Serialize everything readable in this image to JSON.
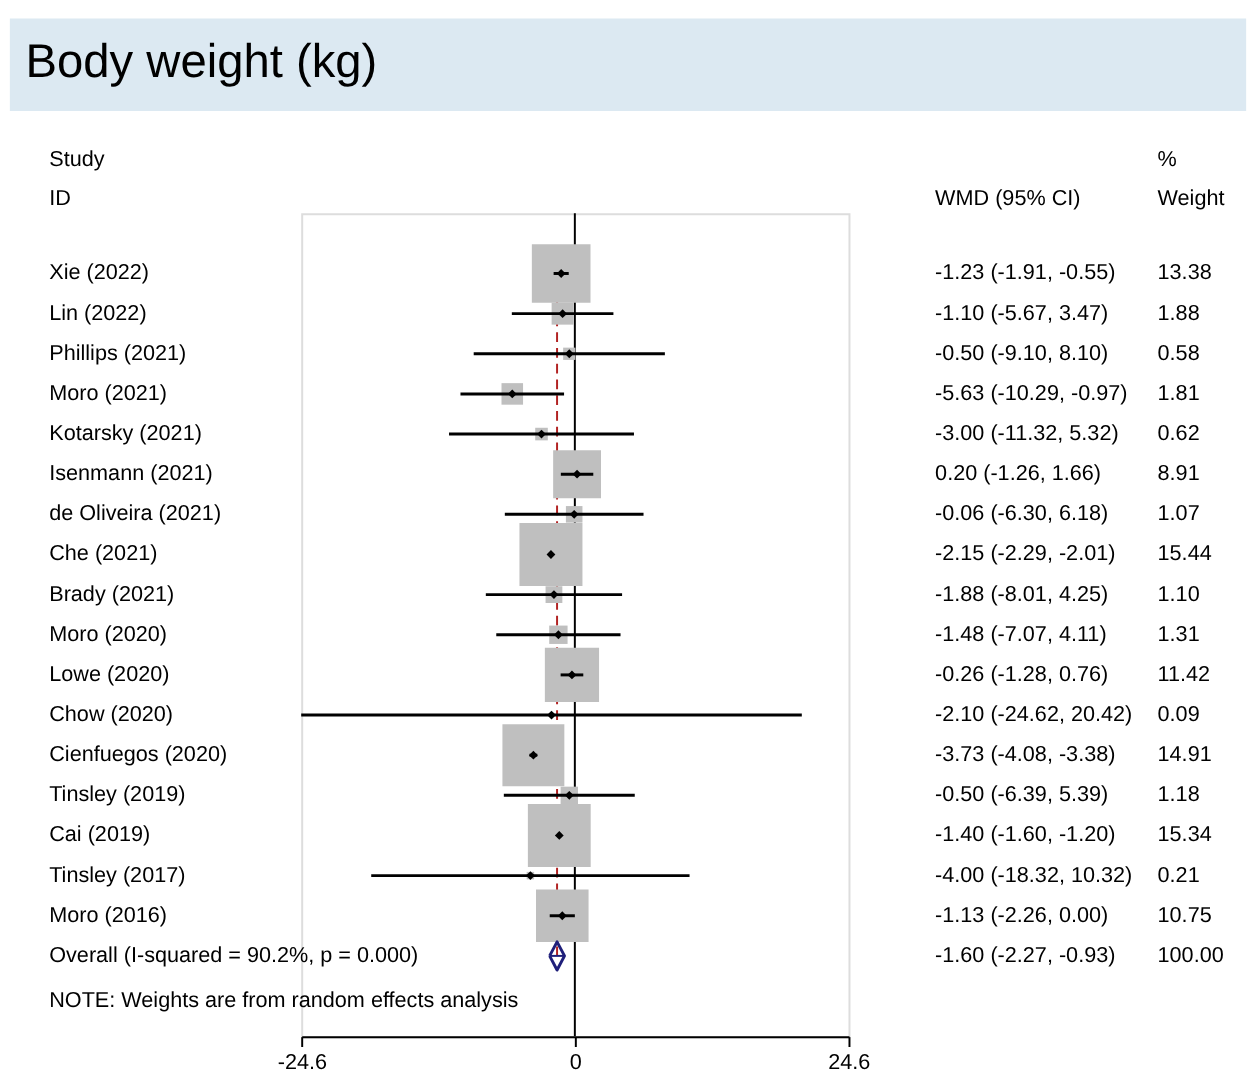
{
  "chart_data": {
    "type": "bubble",
    "orientation": "horizontal",
    "title": "Body weight (kg)",
    "ylabel": "Study\nID",
    "categories": [
      "Xie (2022)",
      "Lin (2022)",
      "Phillips (2021)",
      "Moro (2021)",
      "Kotarsky (2021)",
      "Isenmann (2021)",
      "de Oliveira (2021)",
      "Che (2021)",
      "Brady (2021)",
      "Moro (2020)",
      "Lowe (2020)",
      "Chow (2020)",
      "Cienfuegos (2020)",
      "Tinsley (2019)",
      "Cai  (2019)",
      "Tinsley (2017)",
      "Moro (2016)",
      "Overall  (I-squared = 90.2%, p = 0.000)"
    ],
    "series": [
      {
        "marker": "square",
        "color": "#bfbfbf",
        "values": [
          -1.23,
          -1.1,
          -0.5,
          -5.63,
          -3.0,
          0.2,
          -0.06,
          -2.15,
          -1.88,
          -1.48,
          -0.26,
          -2.1,
          -3.73,
          -0.5,
          -1.4,
          -4.0,
          -1.13,
          null
        ],
        "errors": [
          [
            -1.91,
            -0.55
          ],
          [
            -5.67,
            3.47
          ],
          [
            -9.1,
            8.1
          ],
          [
            -10.29,
            -0.97
          ],
          [
            -11.32,
            5.32
          ],
          [
            -1.26,
            1.66
          ],
          [
            -6.3,
            6.18
          ],
          [
            -2.29,
            -2.01
          ],
          [
            -8.01,
            4.25
          ],
          [
            -7.07,
            4.11
          ],
          [
            -1.28,
            0.76
          ],
          [
            -24.62,
            20.42
          ],
          [
            -4.08,
            -3.38
          ],
          [
            -6.39,
            5.39
          ],
          [
            -1.6,
            -1.2
          ],
          [
            -18.32,
            10.32
          ],
          [
            -2.26,
            0.0
          ],
          null
        ],
        "sizes": [
          0.867,
          0.122,
          0.038,
          0.117,
          0.04,
          0.577,
          0.069,
          1,
          0.071,
          0.085,
          0.74,
          0.006,
          0.966,
          0.076,
          0.994,
          0.014,
          0.696,
          null
        ]
      },
      {
        "type": "scatter",
        "marker": "diamond",
        "color": "#1f1f7a",
        "values": [
          null,
          null,
          null,
          null,
          null,
          null,
          null,
          null,
          null,
          null,
          null,
          null,
          null,
          null,
          null,
          null,
          null,
          -1.6
        ],
        "errors": [
          null,
          null,
          null,
          null,
          null,
          null,
          null,
          null,
          null,
          null,
          null,
          null,
          null,
          null,
          null,
          null,
          null,
          [
            -2.27,
            -0.93
          ]
        ]
      }
    ],
    "value_labels": [
      "-1.23 (-1.91, -0.55)",
      "-1.10 (-5.67, 3.47)",
      "-0.50 (-9.10, 8.10)",
      "-5.63 (-10.29, -0.97)",
      "-3.00 (-11.32, 5.32)",
      "0.20 (-1.26, 1.66)",
      "-0.06 (-6.30, 6.18)",
      "-2.15 (-2.29, -2.01)",
      "-1.88 (-8.01, 4.25)",
      "-1.48 (-7.07, 4.11)",
      "-0.26 (-1.28, 0.76)",
      "-2.10 (-24.62, 20.42)",
      "-3.73 (-4.08, -3.38)",
      "-0.50 (-6.39, 5.39)",
      "-1.40 (-1.60, -1.20)",
      "-4.00 (-18.32, 10.32)",
      "-1.13 (-2.26, 0.00)",
      "-1.60 (-2.27, -0.93)"
    ],
    "annotations": [
      "WMD (95% CI)",
      "%\nWeight",
      "NOTE: Weights are from random effects analysis",
      "13.38",
      "1.88",
      "0.58",
      "1.81",
      "0.62",
      "8.91",
      "1.07",
      "15.44",
      "1.10",
      "1.31",
      "11.42",
      "0.09",
      "14.91",
      "1.18",
      "15.34",
      "0.21",
      "10.75",
      "100.00"
    ],
    "xlim": [
      -24.62,
      24.62
    ],
    "xticks": [
      -24.6,
      0,
      24.6
    ],
    "ref_lines": [
      {
        "axis": "x",
        "value": 0,
        "color": "#000000",
        "line_style": "solid"
      },
      {
        "axis": "x",
        "value": -1.6,
        "color": "#b22222",
        "line_style": "dashed"
      }
    ],
    "grid": false
  }
}
